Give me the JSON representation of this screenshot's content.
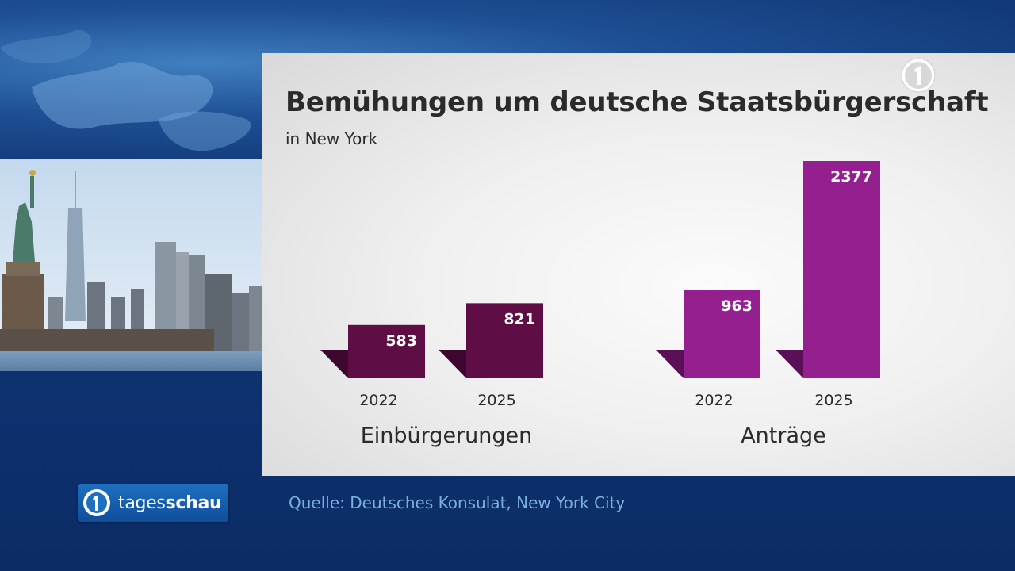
{
  "card": {
    "title": "Bemühungen um deutsche Staatsbürgerschaft",
    "subtitle": "in New York"
  },
  "source": "Quelle: Deutsches Konsulat, New York City",
  "brand": {
    "prefix": "tages",
    "suffix": "schau"
  },
  "colors": {
    "einbuergerungen": "#5e0d45",
    "antraege": "#93208e",
    "einbuergerungen_shadow": "#3d0730",
    "antraege_shadow": "#5a0f56"
  },
  "chart_data": {
    "type": "bar",
    "title": "Bemühungen um deutsche Staatsbürgerschaft",
    "subtitle": "in New York",
    "ylim": [
      0,
      2377
    ],
    "grid": false,
    "groups": [
      {
        "name": "Einbürgerungen",
        "color": "#5e0d45",
        "categories": [
          "2022",
          "2025"
        ],
        "values": [
          583,
          821
        ]
      },
      {
        "name": "Anträge",
        "color": "#93208e",
        "categories": [
          "2022",
          "2025"
        ],
        "values": [
          963,
          2377
        ]
      }
    ]
  }
}
